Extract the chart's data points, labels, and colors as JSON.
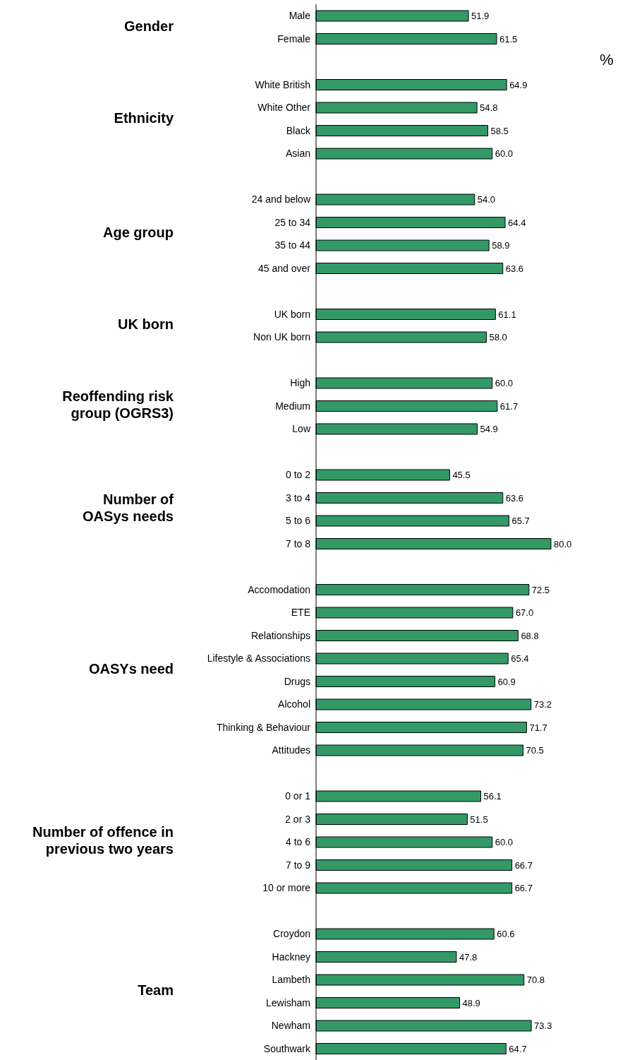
{
  "chart_data": {
    "type": "bar",
    "orientation": "horizontal",
    "xlabel": "%",
    "tick_labels": "y",
    "color": "#339966",
    "categories": [
      "Male",
      "Female",
      null,
      "White British",
      "White Other",
      "Black",
      "Asian",
      null,
      "24 and below",
      "25 to 34",
      "35 to 44",
      "45 and over",
      null,
      "UK born",
      "Non UK born",
      null,
      "High",
      "Medium",
      "Low",
      null,
      "0 to 2",
      "3 to 4",
      "5 to 6",
      "7 to 8",
      null,
      "Accomodation",
      "ETE",
      "Relationships",
      "Lifestyle & Associations",
      "Drugs",
      "Alcohol",
      "Thinking & Behaviour",
      "Attitudes",
      null,
      "0 or 1",
      "2 or 3",
      "4 to 6",
      "7 to 9",
      "10 or more",
      null,
      "Croydon",
      "Hackney",
      "Lambeth",
      "Lewisham",
      "Newham",
      "Southwark"
    ],
    "values": [
      51.9,
      61.5,
      null,
      64.9,
      54.8,
      58.5,
      60.0,
      null,
      54.0,
      64.4,
      58.9,
      63.6,
      null,
      61.1,
      58.0,
      null,
      60.0,
      61.7,
      54.9,
      null,
      45.5,
      63.6,
      65.7,
      80.0,
      null,
      72.5,
      67.0,
      68.8,
      65.4,
      60.9,
      73.2,
      71.7,
      70.5,
      null,
      56.1,
      51.5,
      60.0,
      66.7,
      66.7,
      null,
      60.6,
      47.8,
      70.8,
      48.9,
      73.3,
      64.7
    ],
    "value_labels": [
      "51.9",
      "61.5",
      null,
      "64.9",
      "54.8",
      "58.5",
      "60.0",
      null,
      "54.0",
      "64.4",
      "58.9",
      "63.6",
      null,
      "61.1",
      "58.0",
      null,
      "60.0",
      "61.7",
      "54.9",
      null,
      "45.5",
      "63.6",
      "65.7",
      "80.0",
      null,
      "72.5",
      "67.0",
      "68.8",
      "65.4",
      "60.9",
      "73.2",
      "71.7",
      "70.5",
      null,
      "56.1",
      "51.5",
      "60.0",
      "66.7",
      "66.7",
      null,
      "60.6",
      "47.8",
      "70.8",
      "48.9",
      "73.3",
      "64.7"
    ],
    "annotations": [
      "Gender",
      "Ethnicity",
      "Age group",
      "UK born",
      "Reoffending risk\ngroup (OGRS3)",
      "Number of\nOASys needs",
      "OASYs need",
      "Number of offence in\nprevious two years",
      "Team"
    ]
  }
}
